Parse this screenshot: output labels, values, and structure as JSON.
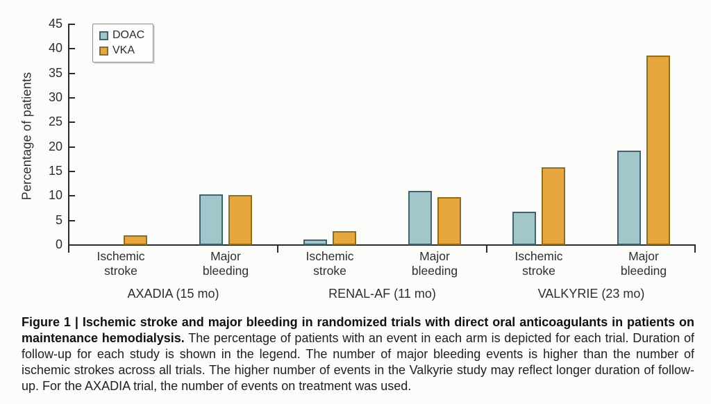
{
  "figure": {
    "caption_bold": "Figure 1 | Ischemic stroke and major bleeding in randomized trials with direct oral anticoagulants in patients on maintenance hemodialysis.",
    "caption_text": " The percentage of patients with an event in each arm is depicted for each trial. Duration of follow-up for each study is shown in the legend. The number of major bleeding events is higher than the number of ischemic strokes across all trials. The higher number of events in the Valkyrie study may reflect longer duration of follow-up. For the AXADIA trial, the number of events on treatment was used."
  },
  "chart_data": {
    "type": "bar",
    "title": "",
    "xlabel": "",
    "ylabel": "Percentage of patients",
    "ylim": [
      0,
      45
    ],
    "ytick_step": 5,
    "grid": false,
    "legend_position": "top-left",
    "axis_color": "#2a2a2a",
    "groups": [
      {
        "label": "AXADIA (15 mo)"
      },
      {
        "label": "RENAL-AF (11 mo)"
      },
      {
        "label": "VALKYRIE (23 mo)"
      }
    ],
    "categories": [
      [
        "Ischemic",
        "stroke"
      ],
      [
        "Major",
        "bleeding"
      ]
    ],
    "series": [
      {
        "name": "DOAC",
        "fill": "#a2c7cb",
        "border": "#3e656d",
        "values": [
          [
            0,
            10.4
          ],
          [
            1.2,
            11.0
          ],
          [
            6.8,
            19.3
          ]
        ]
      },
      {
        "name": "VKA",
        "fill": "#e7a73e",
        "border": "#8c6d21",
        "values": [
          [
            2.0,
            10.2
          ],
          [
            2.9,
            9.7
          ],
          [
            15.9,
            38.6
          ]
        ]
      }
    ]
  }
}
